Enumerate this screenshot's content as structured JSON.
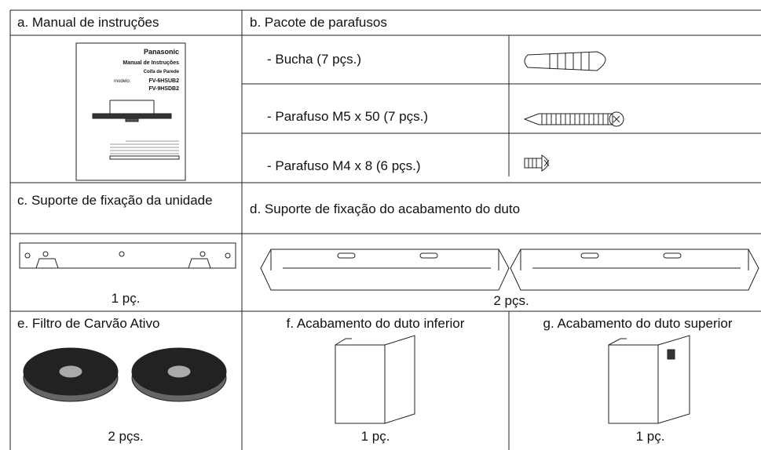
{
  "sections": [
    {
      "title": "a. Manual de instruções"
    },
    {
      "title": "b. Pacote de parafusos",
      "items": [
        {
          "label": "- Bucha (7 pçs.)"
        },
        {
          "label": "- Parafuso M5 x 50 (7 pçs.)"
        },
        {
          "label": "- Parafuso M4 x 8 (6 pçs.)"
        }
      ]
    },
    {
      "title": "c. Suporte de fixação da unidade",
      "quantity": "1 pç."
    },
    {
      "title": "d. Suporte de fixação do acabamento do duto",
      "quantity": "2 pçs."
    },
    {
      "title": "e. Filtro de Carvão Ativo",
      "quantity": "2 pçs."
    },
    {
      "title": "f. Acabamento do duto inferior",
      "quantity": "1 pç."
    },
    {
      "title": "g. Acabamento do duto superior",
      "quantity": "1 pç."
    }
  ],
  "manual_cover": {
    "brand": "Panasonic",
    "title": "Manual de Instruções",
    "subtitle": "Coifa de Parede",
    "model_label": "modelo:",
    "models": [
      "FV-6HSUB2",
      "FV-9HSDB2"
    ]
  }
}
